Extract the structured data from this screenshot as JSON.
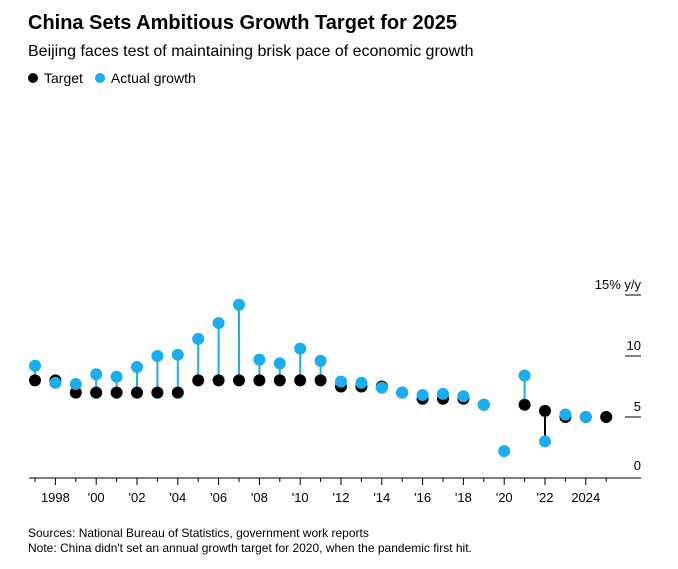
{
  "header": {
    "title": "China Sets Ambitious Growth Target for 2025",
    "subtitle": "Beijing faces test of maintaining brisk pace of economic growth"
  },
  "legend": {
    "target_label": "Target",
    "actual_label": "Actual growth"
  },
  "colors": {
    "target": "#000000",
    "actual": "#1aadf0",
    "axis": "#000000"
  },
  "footer": {
    "sources": "Sources: National Bureau of Statistics, government work reports",
    "note": "Note: China didn't set an annual growth target for 2020, when the pandemic first hit."
  },
  "chart_data": {
    "type": "scatter",
    "title": "China Sets Ambitious Growth Target for 2025",
    "subtitle": "Beijing faces test of maintaining brisk pace of economic growth",
    "xlabel": "",
    "ylabel": "% y/y",
    "ylim": [
      0,
      15
    ],
    "xlim": [
      1997,
      2025
    ],
    "y_ticks": [
      {
        "value": 0,
        "label": "0"
      },
      {
        "value": 5,
        "label": "5"
      },
      {
        "value": 10,
        "label": "10"
      },
      {
        "value": 15,
        "label": "15% y/y"
      }
    ],
    "x_ticks": [
      {
        "value": 1998,
        "label": "1998"
      },
      {
        "value": 2000,
        "label": "'00"
      },
      {
        "value": 2002,
        "label": "'02"
      },
      {
        "value": 2004,
        "label": "'04"
      },
      {
        "value": 2006,
        "label": "'06"
      },
      {
        "value": 2008,
        "label": "'08"
      },
      {
        "value": 2010,
        "label": "'10"
      },
      {
        "value": 2012,
        "label": "'12"
      },
      {
        "value": 2014,
        "label": "'14"
      },
      {
        "value": 2016,
        "label": "'16"
      },
      {
        "value": 2018,
        "label": "'18"
      },
      {
        "value": 2020,
        "label": "'20"
      },
      {
        "value": 2022,
        "label": "'22"
      },
      {
        "value": 2024,
        "label": "2024"
      }
    ],
    "series": [
      {
        "name": "Target",
        "color": "#000000",
        "points": [
          {
            "x": 1997,
            "y": 8.0
          },
          {
            "x": 1998,
            "y": 8.0
          },
          {
            "x": 1999,
            "y": 7.0
          },
          {
            "x": 2000,
            "y": 7.0
          },
          {
            "x": 2001,
            "y": 7.0
          },
          {
            "x": 2002,
            "y": 7.0
          },
          {
            "x": 2003,
            "y": 7.0
          },
          {
            "x": 2004,
            "y": 7.0
          },
          {
            "x": 2005,
            "y": 8.0
          },
          {
            "x": 2006,
            "y": 8.0
          },
          {
            "x": 2007,
            "y": 8.0
          },
          {
            "x": 2008,
            "y": 8.0
          },
          {
            "x": 2009,
            "y": 8.0
          },
          {
            "x": 2010,
            "y": 8.0
          },
          {
            "x": 2011,
            "y": 8.0
          },
          {
            "x": 2012,
            "y": 7.5
          },
          {
            "x": 2013,
            "y": 7.5
          },
          {
            "x": 2014,
            "y": 7.5
          },
          {
            "x": 2015,
            "y": 7.0
          },
          {
            "x": 2016,
            "y": 6.5
          },
          {
            "x": 2017,
            "y": 6.5
          },
          {
            "x": 2018,
            "y": 6.5
          },
          {
            "x": 2019,
            "y": 6.0
          },
          {
            "x": 2021,
            "y": 6.0
          },
          {
            "x": 2022,
            "y": 5.5
          },
          {
            "x": 2023,
            "y": 5.0
          },
          {
            "x": 2024,
            "y": 5.0
          },
          {
            "x": 2025,
            "y": 5.0
          }
        ]
      },
      {
        "name": "Actual growth",
        "color": "#1aadf0",
        "points": [
          {
            "x": 1997,
            "y": 9.2
          },
          {
            "x": 1998,
            "y": 7.8
          },
          {
            "x": 1999,
            "y": 7.7
          },
          {
            "x": 2000,
            "y": 8.5
          },
          {
            "x": 2001,
            "y": 8.3
          },
          {
            "x": 2002,
            "y": 9.1
          },
          {
            "x": 2003,
            "y": 10.0
          },
          {
            "x": 2004,
            "y": 10.1
          },
          {
            "x": 2005,
            "y": 11.4
          },
          {
            "x": 2006,
            "y": 12.7
          },
          {
            "x": 2007,
            "y": 14.2
          },
          {
            "x": 2008,
            "y": 9.7
          },
          {
            "x": 2009,
            "y": 9.4
          },
          {
            "x": 2010,
            "y": 10.6
          },
          {
            "x": 2011,
            "y": 9.6
          },
          {
            "x": 2012,
            "y": 7.9
          },
          {
            "x": 2013,
            "y": 7.8
          },
          {
            "x": 2014,
            "y": 7.4
          },
          {
            "x": 2015,
            "y": 7.0
          },
          {
            "x": 2016,
            "y": 6.8
          },
          {
            "x": 2017,
            "y": 6.9
          },
          {
            "x": 2018,
            "y": 6.7
          },
          {
            "x": 2019,
            "y": 6.0
          },
          {
            "x": 2020,
            "y": 2.2
          },
          {
            "x": 2021,
            "y": 8.4
          },
          {
            "x": 2022,
            "y": 3.0
          },
          {
            "x": 2023,
            "y": 5.2
          },
          {
            "x": 2024,
            "y": 5.0
          }
        ]
      }
    ]
  }
}
